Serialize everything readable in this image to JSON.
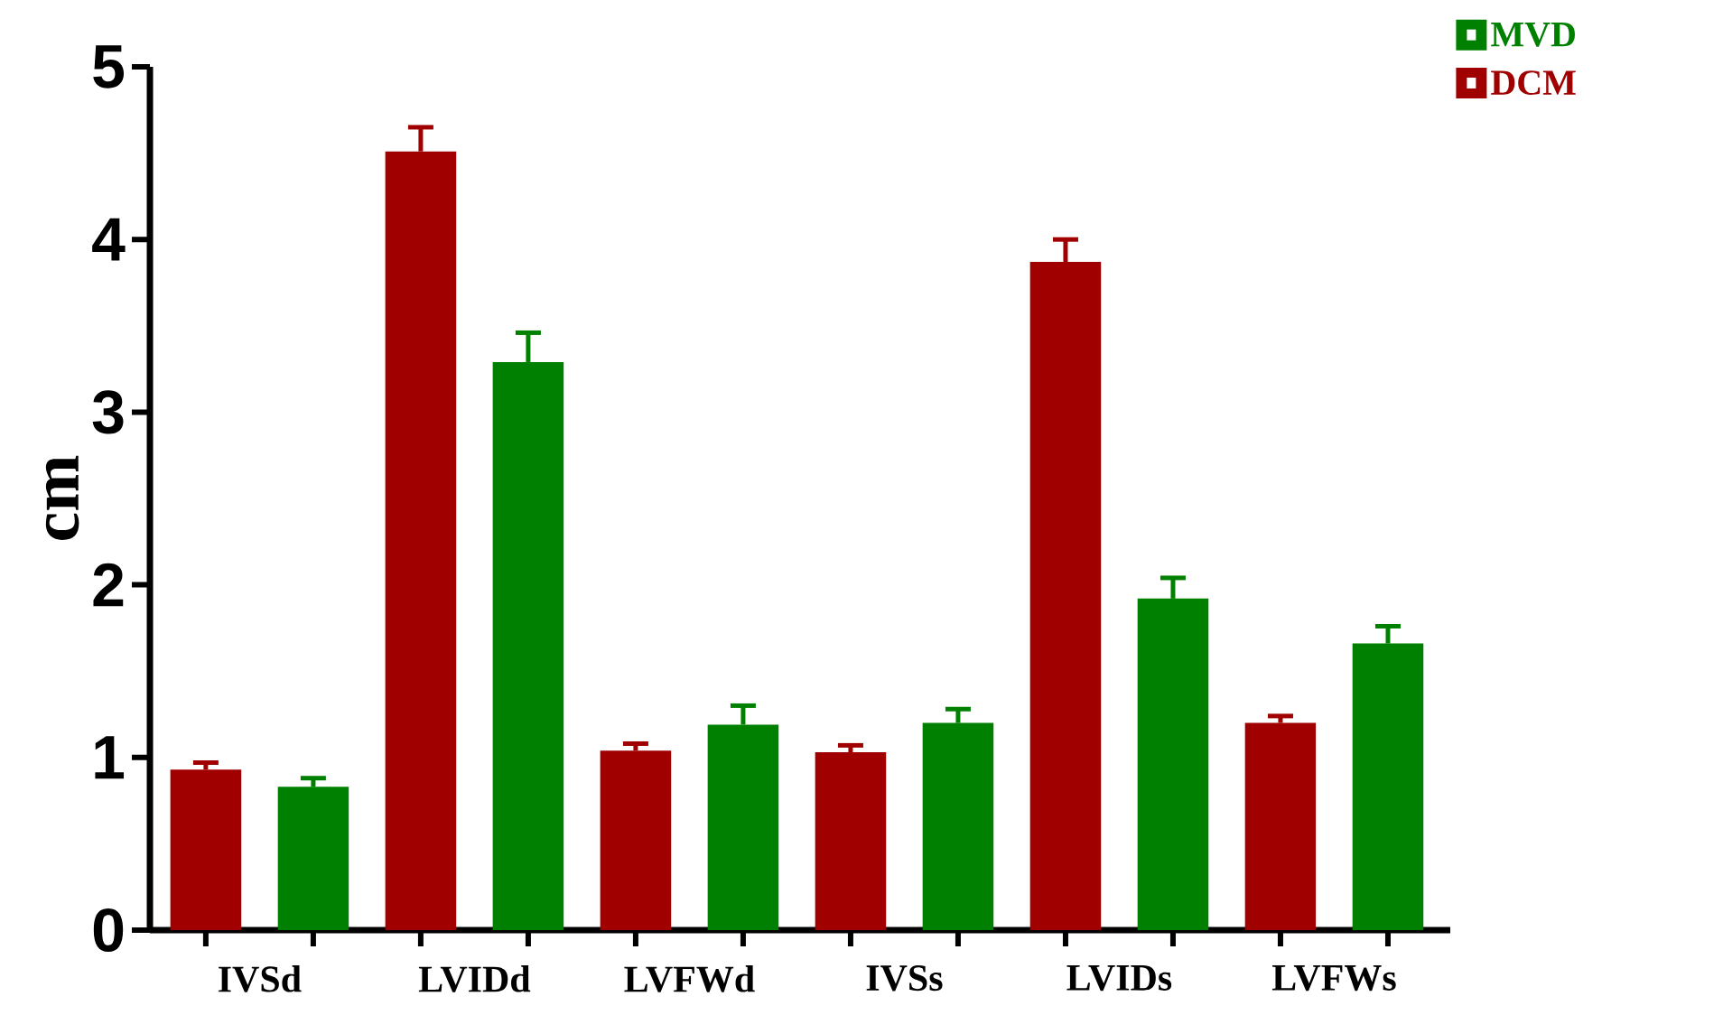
{
  "chart_data": {
    "type": "bar",
    "ylabel": "cm",
    "categories": [
      "IVSd",
      "LVIDd",
      "LVFWd",
      "IVSs",
      "LVIDs",
      "LVFWs"
    ],
    "series": [
      {
        "name": "DCM",
        "color": "#a00000",
        "values": [
          0.93,
          4.51,
          1.04,
          1.03,
          3.87,
          1.2
        ],
        "errors": [
          0.04,
          0.14,
          0.04,
          0.04,
          0.13,
          0.04
        ]
      },
      {
        "name": "MVD",
        "color": "#008000",
        "values": [
          0.83,
          3.29,
          1.19,
          1.2,
          1.92,
          1.66
        ],
        "errors": [
          0.05,
          0.17,
          0.11,
          0.08,
          0.12,
          0.1
        ]
      }
    ],
    "ylim": [
      0,
      5
    ],
    "yticks": [
      0,
      1,
      2,
      3,
      4,
      5
    ],
    "legend": "top right",
    "grid": false
  }
}
